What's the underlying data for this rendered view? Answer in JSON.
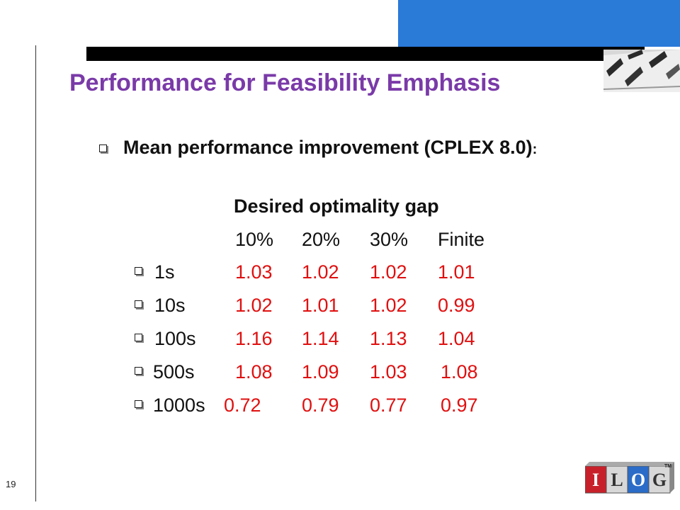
{
  "slide": {
    "number": "19",
    "title": "Performance for Feasibility Emphasis",
    "subtitle": "Mean performance improvement (CPLEX 8.0)",
    "subtitle_suffix": ":"
  },
  "table": {
    "header": "Desired optimality gap",
    "columns": [
      "10%",
      "20%",
      "30%",
      "Finite"
    ],
    "rows": [
      {
        "label": "1s",
        "values": [
          "1.03",
          "1.02",
          "1.02",
          "1.01"
        ]
      },
      {
        "label": "10s",
        "values": [
          "1.02",
          "1.01",
          "1.02",
          "0.99"
        ]
      },
      {
        "label": "100s",
        "values": [
          "1.16",
          "1.14",
          "1.13",
          "1.04"
        ]
      },
      {
        "label": "500s",
        "values": [
          "1.08",
          "1.09",
          "1.03",
          "1.08"
        ]
      },
      {
        "label": "1000s",
        "values": [
          "0.72",
          "0.79",
          "0.77",
          "0.97"
        ]
      }
    ]
  },
  "logo": {
    "letters": [
      "I",
      "L",
      "O",
      "G"
    ],
    "trademark": "TM"
  },
  "colors": {
    "title": "#7a3aa8",
    "values": "#e01010",
    "accent_block": "#2a7ad8"
  }
}
